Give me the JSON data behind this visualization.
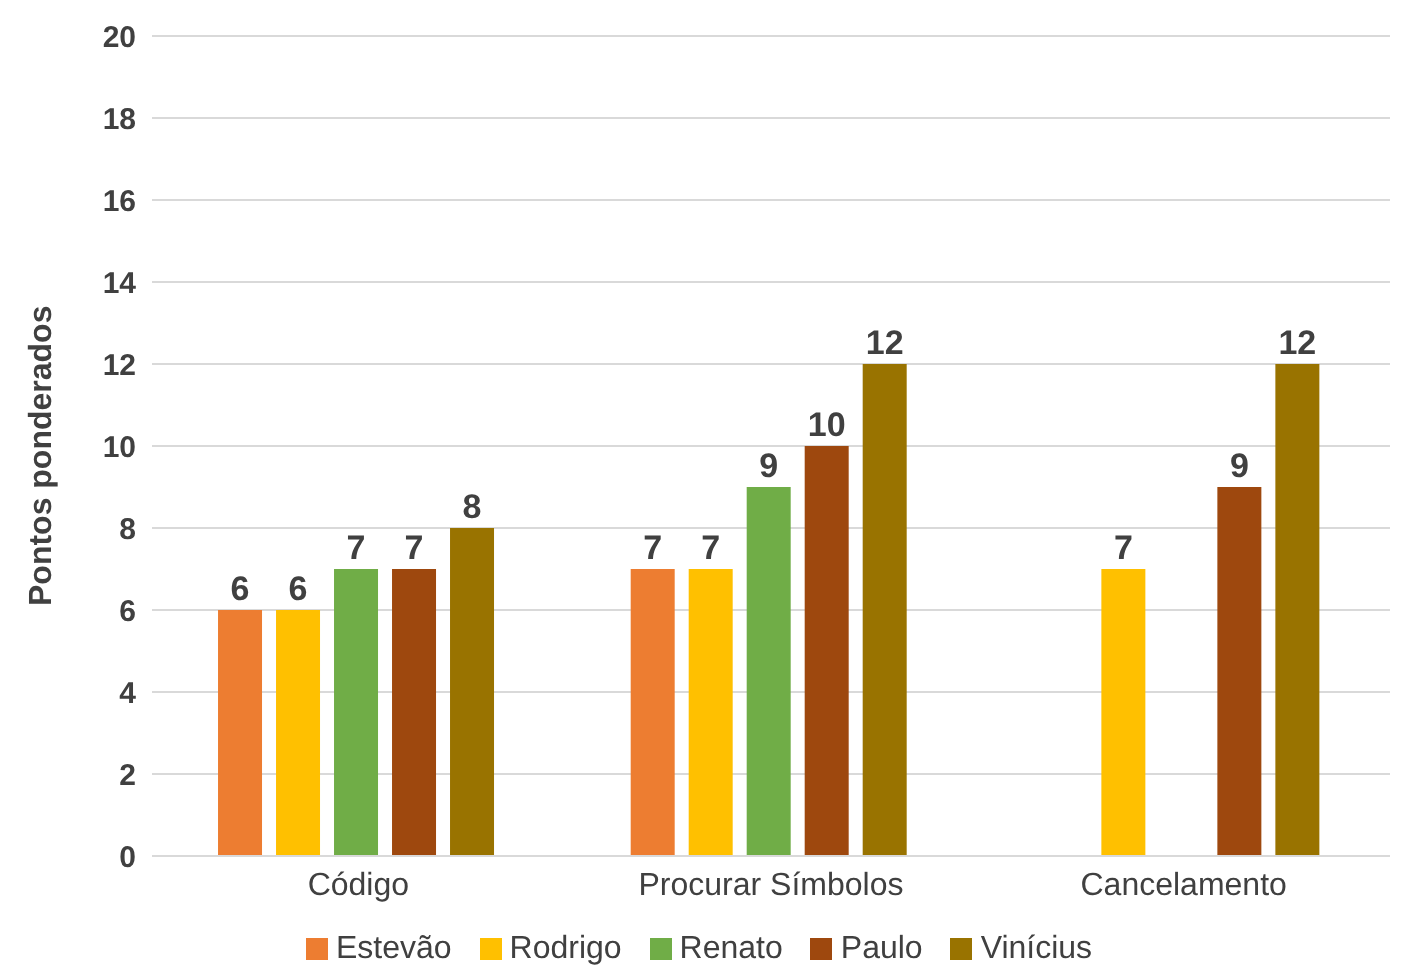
{
  "chart_data": {
    "type": "bar",
    "ylabel": "Pontos ponderados",
    "categories": [
      "Código",
      "Procurar Símbolos",
      "Cancelamento"
    ],
    "series": [
      {
        "name": "Estevão",
        "color": "#ed7d31",
        "values": [
          6,
          7,
          null
        ]
      },
      {
        "name": "Rodrigo",
        "color": "#ffc000",
        "values": [
          6,
          7,
          7
        ]
      },
      {
        "name": "Renato",
        "color": "#70ad47",
        "values": [
          7,
          9,
          null
        ]
      },
      {
        "name": "Paulo",
        "color": "#9e480e",
        "values": [
          7,
          10,
          9
        ]
      },
      {
        "name": "Vinícius",
        "color": "#997300",
        "values": [
          8,
          12,
          12
        ]
      }
    ],
    "ylim": [
      0,
      20
    ],
    "yticks": [
      0,
      2,
      4,
      6,
      8,
      10,
      12,
      14,
      16,
      18,
      20
    ],
    "grid": "y",
    "legend": "bottom",
    "data_labels": true
  }
}
